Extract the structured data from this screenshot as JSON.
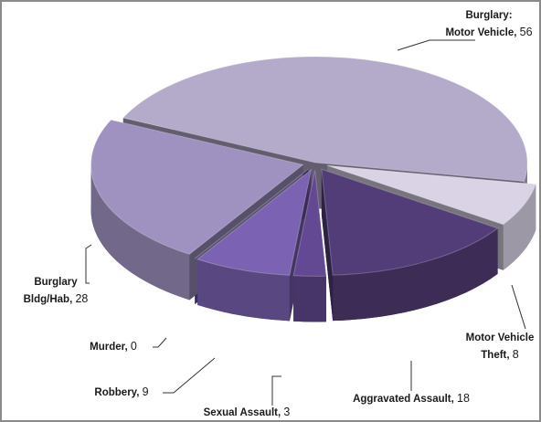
{
  "chart_data": {
    "type": "pie",
    "categories": [
      "Burglary: Motor Vehicle",
      "Motor Vehicle Theft",
      "Aggravated Assault",
      "Sexual Assault",
      "Robbery",
      "Murder",
      "Burglary Bldg/Hab"
    ],
    "values": [
      56,
      8,
      18,
      3,
      9,
      0,
      28
    ],
    "colors": [
      "#b4aac9",
      "#d9d3e5",
      "#533d78",
      "#634993",
      "#7c62b3",
      "#6a4f9e",
      "#9f92c0"
    ]
  }
}
